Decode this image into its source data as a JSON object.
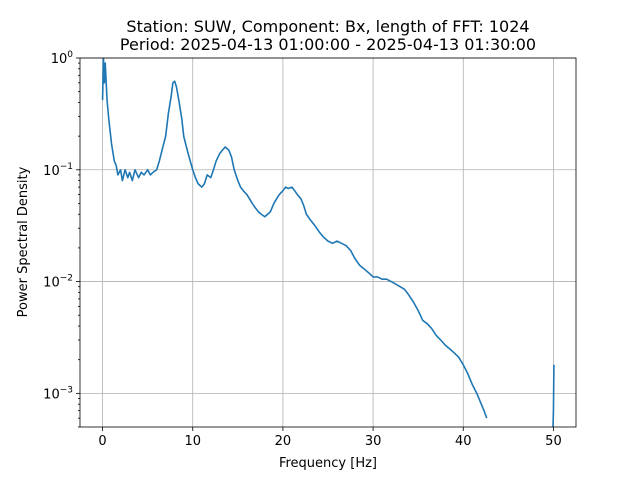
{
  "chart_data": {
    "type": "line",
    "title_line1": "Station: SUW, Component: Bx, length of FFT: 1024",
    "title_line2": "Period: 2025-04-13 01:00:00 - 2025-04-13 01:30:00",
    "xlabel": "Frequency [Hz]",
    "ylabel": "Power Spectral Density",
    "xlim": [
      -2.5,
      52.5
    ],
    "ylim": [
      0.0005,
      1
    ],
    "yscale": "log",
    "grid": true,
    "x_ticks": [
      {
        "value": 0,
        "label": "0"
      },
      {
        "value": 10,
        "label": "10"
      },
      {
        "value": 20,
        "label": "20"
      },
      {
        "value": 30,
        "label": "30"
      },
      {
        "value": 40,
        "label": "40"
      },
      {
        "value": 50,
        "label": "50"
      }
    ],
    "y_ticks": [
      {
        "value": 0.001,
        "base": "10",
        "exp": "−3"
      },
      {
        "value": 0.01,
        "base": "10",
        "exp": "−2"
      },
      {
        "value": 0.1,
        "base": "10",
        "exp": "−1"
      },
      {
        "value": 1,
        "base": "10",
        "exp": "0"
      }
    ],
    "series": [
      {
        "color": "#1f77b4",
        "segments": [
          {
            "x": [
              0,
              0.1,
              0.2,
              0.3,
              0.5,
              0.7,
              1.0,
              1.3,
              1.5,
              1.7,
              2.0,
              2.2,
              2.5,
              2.8,
              3.0,
              3.3,
              3.6,
              4.0,
              4.3,
              4.6,
              5.0,
              5.3,
              5.6,
              6.0,
              6.3,
              6.6,
              7.0,
              7.3,
              7.6,
              7.8,
              8.0,
              8.2,
              8.5,
              8.8,
              9.0,
              9.3,
              9.6,
              10.0,
              10.3,
              10.6,
              11.0,
              11.3,
              11.6,
              12.0,
              12.3,
              12.6,
              13.0,
              13.3,
              13.6,
              14.0,
              14.3,
              14.6,
              15.0,
              15.3,
              15.6,
              16.0,
              16.3,
              16.6,
              17.0,
              17.3,
              17.6,
              18.0,
              18.3,
              18.6,
              19.0,
              19.3,
              19.6,
              20.0,
              20.3,
              20.6,
              21.0,
              21.3,
              21.6,
              22.0,
              22.3,
              22.6,
              23.0,
              23.5,
              24.0,
              24.5,
              25.0,
              25.5,
              26.0,
              26.5,
              27.0,
              27.5,
              28.0,
              28.5,
              29.0,
              29.5,
              30.0,
              30.5,
              31.0,
              31.5,
              32.0,
              32.5,
              33.0,
              33.5,
              34.0,
              34.5,
              35.0,
              35.5,
              36.0,
              36.5,
              37.0,
              37.5,
              38.0,
              38.5,
              39.0,
              39.5,
              40.0,
              40.5,
              41.0,
              41.5,
              42.0,
              42.3,
              42.6
            ],
            "y": [
              0.42,
              1.0,
              0.6,
              0.9,
              0.42,
              0.28,
              0.17,
              0.12,
              0.11,
              0.09,
              0.1,
              0.08,
              0.1,
              0.085,
              0.095,
              0.08,
              0.1,
              0.085,
              0.095,
              0.09,
              0.1,
              0.09,
              0.095,
              0.1,
              0.12,
              0.15,
              0.2,
              0.32,
              0.45,
              0.6,
              0.62,
              0.55,
              0.4,
              0.28,
              0.2,
              0.16,
              0.13,
              0.1,
              0.085,
              0.075,
              0.07,
              0.075,
              0.09,
              0.085,
              0.1,
              0.12,
              0.14,
              0.15,
              0.16,
              0.15,
              0.13,
              0.1,
              0.08,
              0.07,
              0.065,
              0.06,
              0.055,
              0.05,
              0.045,
              0.042,
              0.04,
              0.038,
              0.04,
              0.042,
              0.05,
              0.055,
              0.06,
              0.065,
              0.07,
              0.068,
              0.07,
              0.065,
              0.06,
              0.055,
              0.048,
              0.04,
              0.036,
              0.032,
              0.028,
              0.025,
              0.023,
              0.022,
              0.023,
              0.022,
              0.021,
              0.019,
              0.016,
              0.014,
              0.013,
              0.012,
              0.011,
              0.011,
              0.0105,
              0.0105,
              0.01,
              0.0095,
              0.009,
              0.0085,
              0.0075,
              0.0065,
              0.0055,
              0.0045,
              0.0042,
              0.0038,
              0.0033,
              0.003,
              0.0027,
              0.0025,
              0.0023,
              0.0021,
              0.0018,
              0.0015,
              0.0012,
              0.001,
              0.0008,
              0.0007,
              0.0006
            ]
          },
          {
            "x": [
              49.95,
              50.0,
              50.05
            ],
            "y": [
              0.0005,
              0.0007,
              0.0018
            ]
          }
        ]
      }
    ]
  }
}
